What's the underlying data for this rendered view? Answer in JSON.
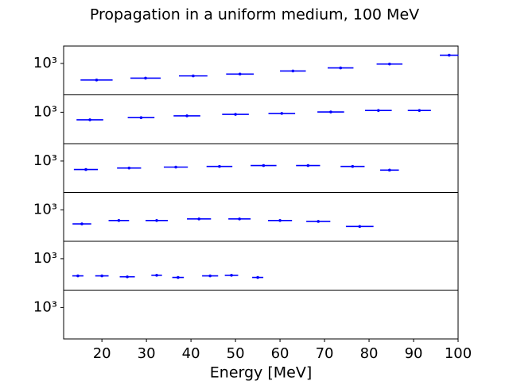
{
  "chart_data": {
    "type": "errorbar",
    "title": "Propagation in a uniform medium, 100 MeV",
    "xlabel": "Energy [MeV]",
    "xlim": [
      11.4,
      100
    ],
    "xticks": [
      20,
      30,
      40,
      50,
      60,
      70,
      80,
      90,
      100
    ],
    "log": true,
    "color": "#0000ff",
    "panels": [
      {
        "x": [
          18.8,
          29.8,
          40.5,
          51,
          62.9,
          73.6,
          84.6,
          98
        ],
        "xerr": [
          3.6,
          3.4,
          3.2,
          3.1,
          2.9,
          2.9,
          2.9,
          2.1
        ],
        "values": [
          946,
          952,
          959,
          965,
          975,
          985,
          998,
          1028
        ],
        "ylim": [
          900,
          1060
        ],
        "yticks": [
          {
            "value": 1000,
            "label": "10³"
          }
        ]
      },
      {
        "x": [
          17.3,
          28.8,
          39.1,
          50,
          60.4,
          71.4,
          82.1,
          91.3
        ],
        "xerr": [
          3,
          3,
          3,
          3,
          3,
          3,
          3,
          2.6
        ],
        "values": [
          975,
          982,
          988,
          993,
          996,
          1001,
          1006,
          1006
        ],
        "ylim": [
          900,
          1060
        ],
        "yticks": [
          {
            "value": 1000,
            "label": "10³"
          }
        ]
      },
      {
        "x": [
          16.4,
          26.1,
          36.6,
          46.4,
          56.3,
          66.3,
          76.3,
          84.6
        ],
        "xerr": [
          2.7,
          2.7,
          2.7,
          2.9,
          2.9,
          2.7,
          2.7,
          2.1
        ],
        "values": [
          972,
          977,
          980,
          982,
          985,
          985,
          982,
          970
        ],
        "ylim": [
          900,
          1060
        ],
        "yticks": [
          {
            "value": 1000,
            "label": "10³"
          }
        ]
      },
      {
        "x": [
          15.5,
          23.8,
          32.3,
          41.8,
          50.9,
          60,
          68.6,
          77.9
        ],
        "xerr": [
          2.1,
          2.3,
          2.5,
          2.7,
          2.5,
          2.7,
          2.7,
          3.1
        ],
        "values": [
          954,
          965,
          965,
          970,
          970,
          965,
          962,
          946
        ],
        "ylim": [
          900,
          1060
        ],
        "yticks": [
          {
            "value": 1000,
            "label": "10³"
          }
        ]
      },
      {
        "x": [
          14.6,
          20,
          25.7,
          32.3,
          37.1,
          44.3,
          49.1,
          55
        ],
        "xerr": [
          1.25,
          1.5,
          1.7,
          1.2,
          1.3,
          1.8,
          1.5,
          1.25
        ],
        "values": [
          944,
          944,
          941,
          946,
          939,
          944,
          946,
          939
        ],
        "ylim": [
          900,
          1060
        ],
        "yticks": [
          {
            "value": 1000,
            "label": "10³"
          }
        ]
      },
      {
        "x": [],
        "xerr": [],
        "values": [],
        "ylim": [
          900,
          1060
        ],
        "yticks": [
          {
            "value": 1000,
            "label": "10³"
          }
        ]
      }
    ]
  }
}
